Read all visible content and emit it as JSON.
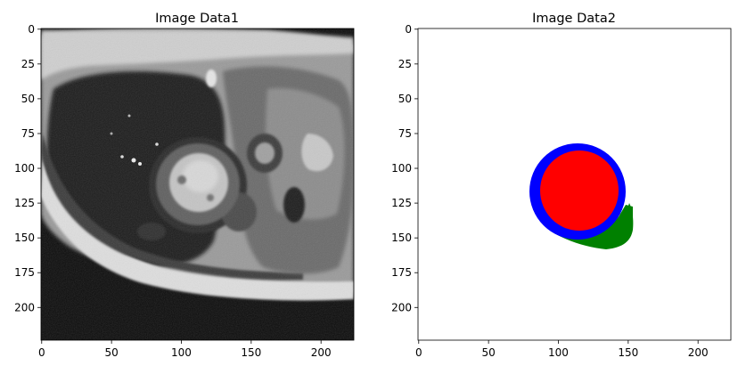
{
  "figure": {
    "panels": [
      {
        "title": "Image Data1",
        "content": "grayscale cardiac MRI short-axis slice",
        "x_ticks": [
          "0",
          "50",
          "100",
          "150",
          "200"
        ],
        "y_ticks": [
          "0",
          "25",
          "50",
          "75",
          "100",
          "125",
          "150",
          "175",
          "200"
        ],
        "extent": [
          0,
          224
        ]
      },
      {
        "title": "Image Data2",
        "content": "segmentation mask",
        "x_ticks": [
          "0",
          "50",
          "100",
          "150",
          "200"
        ],
        "y_ticks": [
          "0",
          "25",
          "50",
          "75",
          "100",
          "125",
          "150",
          "175",
          "200"
        ],
        "extent": [
          0,
          224
        ],
        "segments": [
          {
            "name": "right-ventricle",
            "color": "#008000"
          },
          {
            "name": "myocardium",
            "color": "#0000ff"
          },
          {
            "name": "left-ventricle-cavity",
            "color": "#ff0000"
          }
        ]
      }
    ]
  }
}
